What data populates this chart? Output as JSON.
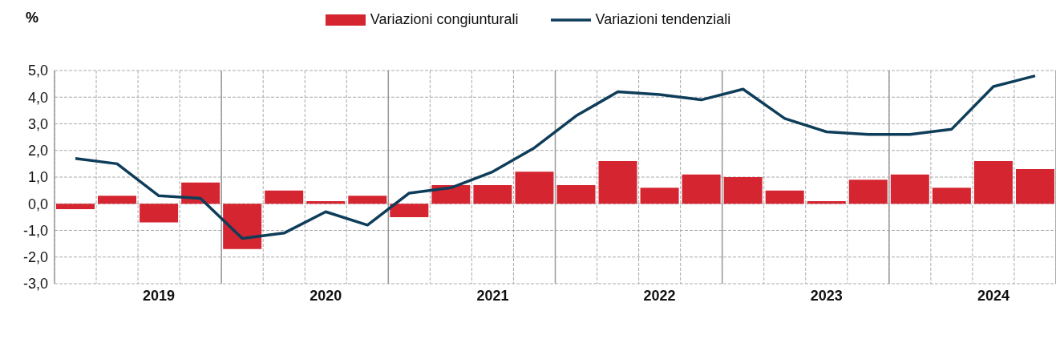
{
  "chart_data": {
    "type": "bar",
    "ylabel": "%",
    "categories": [
      null,
      null,
      "2019",
      null,
      null,
      null,
      "2020",
      null,
      null,
      null,
      "2021",
      null,
      null,
      null,
      "2022",
      null,
      null,
      null,
      "2023",
      null,
      null,
      null,
      "2024",
      null
    ],
    "series": [
      {
        "name": "Variazioni congiunturali",
        "color": "#d42530",
        "values": [
          -0.2,
          0.3,
          -0.7,
          0.8,
          -1.7,
          0.5,
          0.1,
          0.3,
          -0.5,
          0.7,
          0.7,
          1.2,
          0.7,
          1.6,
          0.6,
          1.1,
          1.0,
          0.5,
          0.1,
          0.9,
          1.1,
          0.6,
          1.6,
          1.3
        ]
      },
      {
        "name": "Variazioni tendenziali",
        "type": "line",
        "color": "#0e3d5a",
        "values": [
          1.7,
          1.5,
          0.3,
          0.2,
          -1.3,
          -1.1,
          -0.3,
          -0.8,
          0.4,
          0.6,
          1.2,
          2.1,
          3.3,
          4.2,
          4.1,
          3.9,
          4.3,
          3.2,
          2.7,
          2.6,
          2.6,
          2.8,
          4.4,
          4.8
        ]
      }
    ],
    "ylim": [
      -3,
      5
    ],
    "yticks": [
      {
        "value": -3,
        "label": "-3,0"
      },
      {
        "value": -2,
        "label": "-2,0"
      },
      {
        "value": -1,
        "label": "-1,0"
      },
      {
        "value": 0,
        "label": "0,0"
      },
      {
        "value": 1,
        "label": "1,0"
      },
      {
        "value": 2,
        "label": "2,0"
      },
      {
        "value": 3,
        "label": "3,0"
      },
      {
        "value": 4,
        "label": "4,0"
      },
      {
        "value": 5,
        "label": "5,0"
      }
    ],
    "grid": true,
    "legend": "top",
    "marker": "none",
    "line_style": "solid"
  }
}
